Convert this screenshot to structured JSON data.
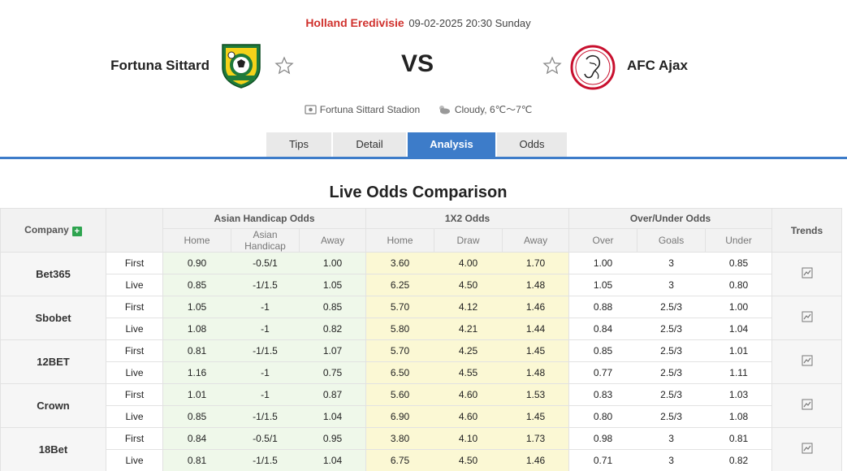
{
  "match": {
    "league": "Holland Eredivisie",
    "datetime": "09-02-2025 20:30 Sunday",
    "home_team": "Fortuna Sittard",
    "away_team": "AFC Ajax",
    "vs_label": "VS",
    "venue": "Fortuna Sittard Stadion",
    "weather": "Cloudy,  6℃～7℃"
  },
  "tabs": [
    {
      "label": "Tips",
      "active": false
    },
    {
      "label": "Detail",
      "active": false
    },
    {
      "label": "Analysis",
      "active": true
    },
    {
      "label": "Odds",
      "active": false
    }
  ],
  "section_title": "Live Odds Comparison",
  "table": {
    "company_label": "Company",
    "trends_label": "Trends",
    "groups": {
      "asian": "Asian Handicap Odds",
      "x12": "1X2 Odds",
      "ou": "Over/Under Odds"
    },
    "subheaders": {
      "asian": [
        "Home",
        "Asian Handicap",
        "Away"
      ],
      "x12": [
        "Home",
        "Draw",
        "Away"
      ],
      "ou": [
        "Over",
        "Goals",
        "Under"
      ]
    },
    "companies": [
      {
        "name": "Bet365",
        "rows": [
          {
            "type": "First",
            "asian": [
              "0.90",
              "-0.5/1",
              "1.00"
            ],
            "x12": [
              "3.60",
              "4.00",
              "1.70"
            ],
            "ou": [
              "1.00",
              "3",
              "0.85"
            ]
          },
          {
            "type": "Live",
            "asian": [
              "0.85",
              "-1/1.5",
              "1.05"
            ],
            "x12": [
              "6.25",
              "4.50",
              "1.48"
            ],
            "ou": [
              "1.05",
              "3",
              "0.80"
            ]
          }
        ]
      },
      {
        "name": "Sbobet",
        "rows": [
          {
            "type": "First",
            "asian": [
              "1.05",
              "-1",
              "0.85"
            ],
            "x12": [
              "5.70",
              "4.12",
              "1.46"
            ],
            "ou": [
              "0.88",
              "2.5/3",
              "1.00"
            ]
          },
          {
            "type": "Live",
            "asian": [
              "1.08",
              "-1",
              "0.82"
            ],
            "x12": [
              "5.80",
              "4.21",
              "1.44"
            ],
            "ou": [
              "0.84",
              "2.5/3",
              "1.04"
            ]
          }
        ]
      },
      {
        "name": "12BET",
        "rows": [
          {
            "type": "First",
            "asian": [
              "0.81",
              "-1/1.5",
              "1.07"
            ],
            "x12": [
              "5.70",
              "4.25",
              "1.45"
            ],
            "ou": [
              "0.85",
              "2.5/3",
              "1.01"
            ]
          },
          {
            "type": "Live",
            "asian": [
              "1.16",
              "-1",
              "0.75"
            ],
            "x12": [
              "6.50",
              "4.55",
              "1.48"
            ],
            "ou": [
              "0.77",
              "2.5/3",
              "1.11"
            ]
          }
        ]
      },
      {
        "name": "Crown",
        "rows": [
          {
            "type": "First",
            "asian": [
              "1.01",
              "-1",
              "0.87"
            ],
            "x12": [
              "5.60",
              "4.60",
              "1.53"
            ],
            "ou": [
              "0.83",
              "2.5/3",
              "1.03"
            ]
          },
          {
            "type": "Live",
            "asian": [
              "0.85",
              "-1/1.5",
              "1.04"
            ],
            "x12": [
              "6.90",
              "4.60",
              "1.45"
            ],
            "ou": [
              "0.80",
              "2.5/3",
              "1.08"
            ]
          }
        ]
      },
      {
        "name": "18Bet",
        "rows": [
          {
            "type": "First",
            "asian": [
              "0.84",
              "-0.5/1",
              "0.95"
            ],
            "x12": [
              "3.80",
              "4.10",
              "1.73"
            ],
            "ou": [
              "0.98",
              "3",
              "0.81"
            ]
          },
          {
            "type": "Live",
            "asian": [
              "0.81",
              "-1/1.5",
              "1.04"
            ],
            "x12": [
              "6.75",
              "4.50",
              "1.46"
            ],
            "ou": [
              "0.71",
              "3",
              "0.82"
            ]
          }
        ]
      }
    ]
  },
  "colors": {
    "accent": "#3d7cc9",
    "league_red": "#d0312d",
    "asian_bg": "#eff8ea",
    "x12_bg": "#fbf8d4"
  },
  "icons": {
    "star": "star-outline-icon",
    "venue": "stadium-icon",
    "weather": "cloudy-icon",
    "trend": "trend-chart-icon",
    "add": "plus-icon"
  }
}
